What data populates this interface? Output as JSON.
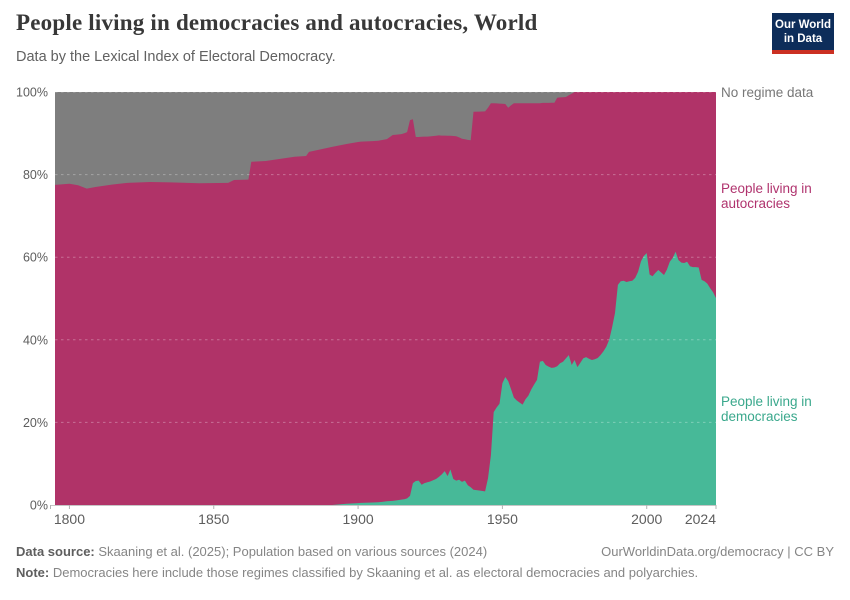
{
  "header": {
    "title": "People living in democracies and autocracies, World",
    "subtitle": "Data by the Lexical Index of Electoral Democracy.",
    "logo": {
      "line1": "Our World",
      "line2": "in Data"
    }
  },
  "footer": {
    "data_source_label": "Data source:",
    "data_source": "Skaaning et al. (2025); Population based on various sources (2024)",
    "link": "OurWorldinData.org/democracy | CC BY",
    "note_label": "Note:",
    "note": "Democracies here include those regimes classified by Skaaning et al. as electoral democracies and polyarchies."
  },
  "chart_data": {
    "type": "area",
    "stacking": "percent",
    "title": "People living in democracies and autocracies, World",
    "xlabel": "",
    "ylabel": "",
    "x_domain": [
      1795,
      2024
    ],
    "y_domain": [
      0,
      100
    ],
    "x_ticks": [
      1800,
      1850,
      1900,
      1950,
      2000,
      2024
    ],
    "y_ticks": [
      {
        "value": 0,
        "label": "0%"
      },
      {
        "value": 20,
        "label": "20%"
      },
      {
        "value": 40,
        "label": "40%"
      },
      {
        "value": 60,
        "label": "60%"
      },
      {
        "value": 80,
        "label": "80%"
      },
      {
        "value": 100,
        "label": "100%"
      }
    ],
    "grid": "dashed",
    "legend_position": "right-edge-labels",
    "years": [
      1795,
      1800,
      1803,
      1806,
      1809,
      1815,
      1820,
      1828,
      1835,
      1845,
      1855,
      1857,
      1862,
      1863,
      1868,
      1873,
      1878,
      1882,
      1883,
      1887,
      1891,
      1896,
      1900,
      1901,
      1905,
      1907,
      1910,
      1912,
      1913,
      1915,
      1916,
      1917,
      1918,
      1919,
      1920,
      1921,
      1922,
      1923,
      1924,
      1925,
      1927,
      1928,
      1929,
      1930,
      1931,
      1932,
      1933,
      1934,
      1935,
      1936,
      1937,
      1938,
      1939,
      1940,
      1942,
      1944,
      1945,
      1946,
      1947,
      1948,
      1949,
      1950,
      1951,
      1952,
      1953,
      1954,
      1955,
      1956,
      1957,
      1958,
      1959,
      1960,
      1961,
      1962,
      1963,
      1964,
      1965,
      1966,
      1967,
      1968,
      1969,
      1970,
      1971,
      1972,
      1973,
      1974,
      1975,
      1976,
      1977,
      1978,
      1979,
      1980,
      1981,
      1982,
      1983,
      1984,
      1985,
      1986,
      1987,
      1988,
      1989,
      1990,
      1991,
      1992,
      1993,
      1994,
      1995,
      1996,
      1997,
      1998,
      1999,
      2000,
      2001,
      2002,
      2003,
      2004,
      2005,
      2006,
      2007,
      2008,
      2009,
      2010,
      2011,
      2012,
      2013,
      2014,
      2015,
      2016,
      2017,
      2018,
      2019,
      2020,
      2021,
      2022,
      2023,
      2024
    ],
    "series": [
      {
        "id": "democracies",
        "label": "People living in democracies",
        "color": "#47b998",
        "label_color": "#3aa88c",
        "values": [
          0,
          0,
          0,
          0,
          0,
          0,
          0,
          0,
          0,
          0,
          0,
          0,
          0,
          0,
          0,
          0,
          0,
          0,
          0,
          0,
          0,
          0.3,
          0.45,
          0.5,
          0.6,
          0.65,
          0.9,
          1.0,
          1.1,
          1.3,
          1.4,
          1.6,
          2.2,
          5.3,
          5.8,
          5.9,
          4.9,
          5.3,
          5.5,
          5.7,
          6.3,
          6.8,
          7.4,
          8.2,
          7.0,
          8.6,
          6.3,
          5.9,
          6.1,
          5.6,
          5.9,
          4.8,
          4.3,
          3.7,
          3.5,
          3.3,
          6.5,
          12.0,
          22.5,
          23.6,
          24.5,
          29.5,
          31.0,
          30.0,
          28.0,
          26.0,
          25.3,
          24.8,
          24.3,
          25.6,
          26.5,
          28.0,
          29.2,
          30.3,
          34.7,
          34.9,
          33.9,
          33.5,
          33.2,
          33.3,
          33.6,
          34.3,
          34.7,
          35.5,
          36.3,
          33.9,
          35.1,
          33.4,
          34.4,
          35.5,
          35.8,
          35.4,
          35.1,
          35.3,
          35.6,
          36.3,
          37.2,
          38.3,
          40.0,
          43.0,
          46.5,
          53.3,
          54.2,
          54.3,
          54.0,
          54.2,
          54.3,
          55.0,
          56.5,
          59.0,
          60.3,
          61.0,
          55.8,
          55.4,
          56.2,
          56.9,
          56.3,
          55.7,
          57.0,
          58.9,
          59.8,
          61.3,
          59.3,
          58.7,
          58.6,
          58.9,
          57.8,
          57.6,
          57.6,
          57.5,
          54.5,
          54.2,
          53.6,
          52.5,
          51.5,
          50.1
        ]
      },
      {
        "id": "autocracies",
        "label": "People living in autocracies",
        "color": "#b03368",
        "label_color": "#b0336e",
        "values": [
          77.5,
          77.8,
          77.4,
          76.6,
          77.0,
          77.6,
          78.0,
          78.2,
          78.1,
          77.9,
          78.0,
          78.7,
          78.8,
          83.1,
          83.3,
          83.8,
          84.3,
          84.5,
          85.5,
          86.1,
          86.7,
          87.1,
          87.45,
          87.5,
          87.5,
          87.55,
          87.7,
          88.6,
          88.55,
          88.5,
          88.6,
          88.7,
          91.0,
          88.1,
          83.3,
          83.2,
          84.25,
          83.9,
          83.7,
          83.55,
          83.1,
          82.7,
          82.05,
          81.25,
          82.4,
          80.8,
          83.05,
          83.4,
          82.9,
          83.1,
          82.65,
          83.6,
          84.0,
          91.5,
          91.75,
          92.0,
          89.7,
          85.3,
          74.8,
          73.65,
          72.7,
          67.65,
          66.1,
          66.2,
          68.8,
          71.3,
          72.0,
          72.5,
          73.0,
          71.7,
          70.8,
          69.3,
          68.1,
          67.0,
          62.6,
          62.45,
          63.45,
          63.85,
          64.2,
          64.1,
          65.0,
          64.4,
          64.05,
          63.3,
          62.9,
          65.7,
          64.9,
          66.6,
          65.6,
          64.5,
          64.2,
          64.6,
          64.9,
          64.7,
          64.4,
          63.7,
          62.8,
          61.7,
          60.0,
          57.0,
          53.5,
          46.7,
          45.8,
          45.7,
          46.0,
          45.8,
          45.7,
          45.0,
          43.5,
          41.0,
          39.7,
          39.0,
          44.2,
          44.6,
          43.8,
          43.1,
          43.7,
          44.3,
          43.0,
          41.1,
          40.2,
          38.7,
          40.7,
          41.3,
          41.4,
          41.1,
          42.2,
          42.4,
          42.4,
          42.5,
          45.5,
          45.8,
          46.4,
          47.5,
          48.5,
          49.9
        ]
      },
      {
        "id": "no_regime_data",
        "label": "No regime data",
        "color": "#7e7e7e",
        "label_color": "#777777",
        "values": [
          22.5,
          22.2,
          22.6,
          23.4,
          23.0,
          22.4,
          22.0,
          21.8,
          21.9,
          22.1,
          22.0,
          21.3,
          21.2,
          16.9,
          16.7,
          16.2,
          15.7,
          15.5,
          14.5,
          13.9,
          13.3,
          12.6,
          12.1,
          12.0,
          11.9,
          11.8,
          11.4,
          10.4,
          10.35,
          10.2,
          10.0,
          9.7,
          6.8,
          6.6,
          10.9,
          10.9,
          10.85,
          10.8,
          10.8,
          10.75,
          10.6,
          10.5,
          10.55,
          10.55,
          10.6,
          10.6,
          10.65,
          10.7,
          11.0,
          11.3,
          11.45,
          11.6,
          11.7,
          4.8,
          4.75,
          4.7,
          3.8,
          2.7,
          2.7,
          2.75,
          2.8,
          2.85,
          2.9,
          3.8,
          3.2,
          2.7,
          2.7,
          2.7,
          2.7,
          2.7,
          2.7,
          2.7,
          2.7,
          2.7,
          2.7,
          2.65,
          2.65,
          2.65,
          2.6,
          2.6,
          1.4,
          1.3,
          1.25,
          1.2,
          0.8,
          0.4,
          0,
          0,
          0,
          0,
          0,
          0,
          0,
          0,
          0,
          0,
          0,
          0,
          0,
          0,
          0,
          0,
          0,
          0,
          0,
          0,
          0,
          0,
          0,
          0,
          0,
          0,
          0,
          0,
          0,
          0,
          0,
          0,
          0,
          0,
          0,
          0,
          0,
          0,
          0,
          0,
          0,
          0,
          0,
          0,
          0,
          0,
          0,
          0,
          0,
          0,
          0
        ]
      }
    ]
  }
}
